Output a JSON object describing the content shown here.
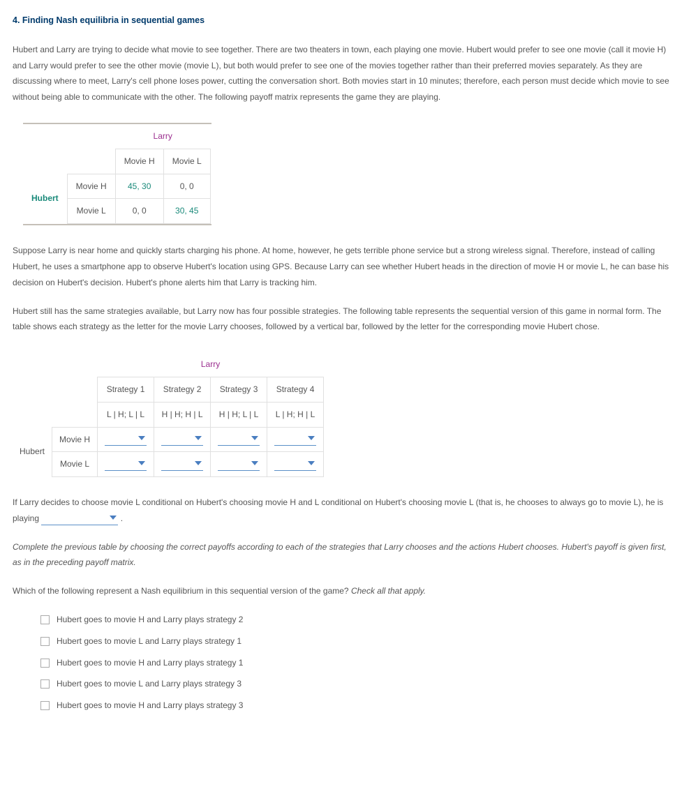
{
  "heading": "4. Finding Nash equilibria in sequential games",
  "p1": "Hubert and Larry are trying to decide what movie to see together. There are two theaters in town, each playing one movie. Hubert would prefer to see one movie (call it movie H) and Larry would prefer to see the other movie (movie L), but both would prefer to see one of the movies together rather than their preferred movies separately. As they are discussing where to meet, Larry's cell phone loses power, cutting the conversation short. Both movies start in 10 minutes; therefore, each person must decide which movie to see without being able to communicate with the other. The following payoff matrix represents the game they are playing.",
  "payoff": {
    "colPlayer": "Larry",
    "rowPlayer": "Hubert",
    "colHeaders": [
      "Movie H",
      "Movie L"
    ],
    "rowHeaders": [
      "Movie H",
      "Movie L"
    ],
    "cells": [
      [
        "45, 30",
        "0, 0"
      ],
      [
        "0, 0",
        "30, 45"
      ]
    ],
    "hrWidth": "270px",
    "highlightColor": "#1a8a7a"
  },
  "p2": "Suppose Larry is near home and quickly starts charging his phone. At home, however, he gets terrible phone service but a strong wireless signal. Therefore, instead of calling Hubert, he uses a smartphone app to observe Hubert's location using GPS. Because Larry can see whether Hubert heads in the direction of movie H or movie L, he can base his decision on Hubert's decision. Hubert's phone alerts him that Larry is tracking him.",
  "p3": "Hubert still has the same strategies available, but Larry now has four possible strategies. The following table represents the sequential version of this game in normal form. The table shows each strategy as the letter for the movie Larry chooses, followed by a vertical bar, followed by the letter for the corresponding movie Hubert chose.",
  "strategy": {
    "colPlayer": "Larry",
    "rowPlayer": "Hubert",
    "stratHeaders": [
      "Strategy 1",
      "Strategy 2",
      "Strategy 3",
      "Strategy 4"
    ],
    "stratCodes": [
      "L | H; L | L",
      "H | H; H | L",
      "H | H; L | L",
      "L | H; H | L"
    ],
    "rowHeaders": [
      "Movie H",
      "Movie L"
    ]
  },
  "p4a": "If Larry decides to choose movie L conditional on Hubert's choosing movie H and L conditional on Hubert's choosing movie L (that is, he chooses to always go to movie L), he is playing ",
  "p4b": " .",
  "p5": "Complete the previous table by choosing the correct payoffs according to each of the strategies that Larry chooses and the actions Hubert chooses. Hubert's payoff is given first, as in the preceding payoff matrix.",
  "p6a": "Which of the following represent a Nash equilibrium in this sequential version of the game? ",
  "p6b": "Check all that apply.",
  "options": [
    "Hubert goes to movie H and Larry plays strategy 2",
    "Hubert goes to movie L and Larry plays strategy 1",
    "Hubert goes to movie H and Larry plays strategy 1",
    "Hubert goes to movie L and Larry plays strategy 3",
    "Hubert goes to movie H and Larry plays strategy 3"
  ]
}
